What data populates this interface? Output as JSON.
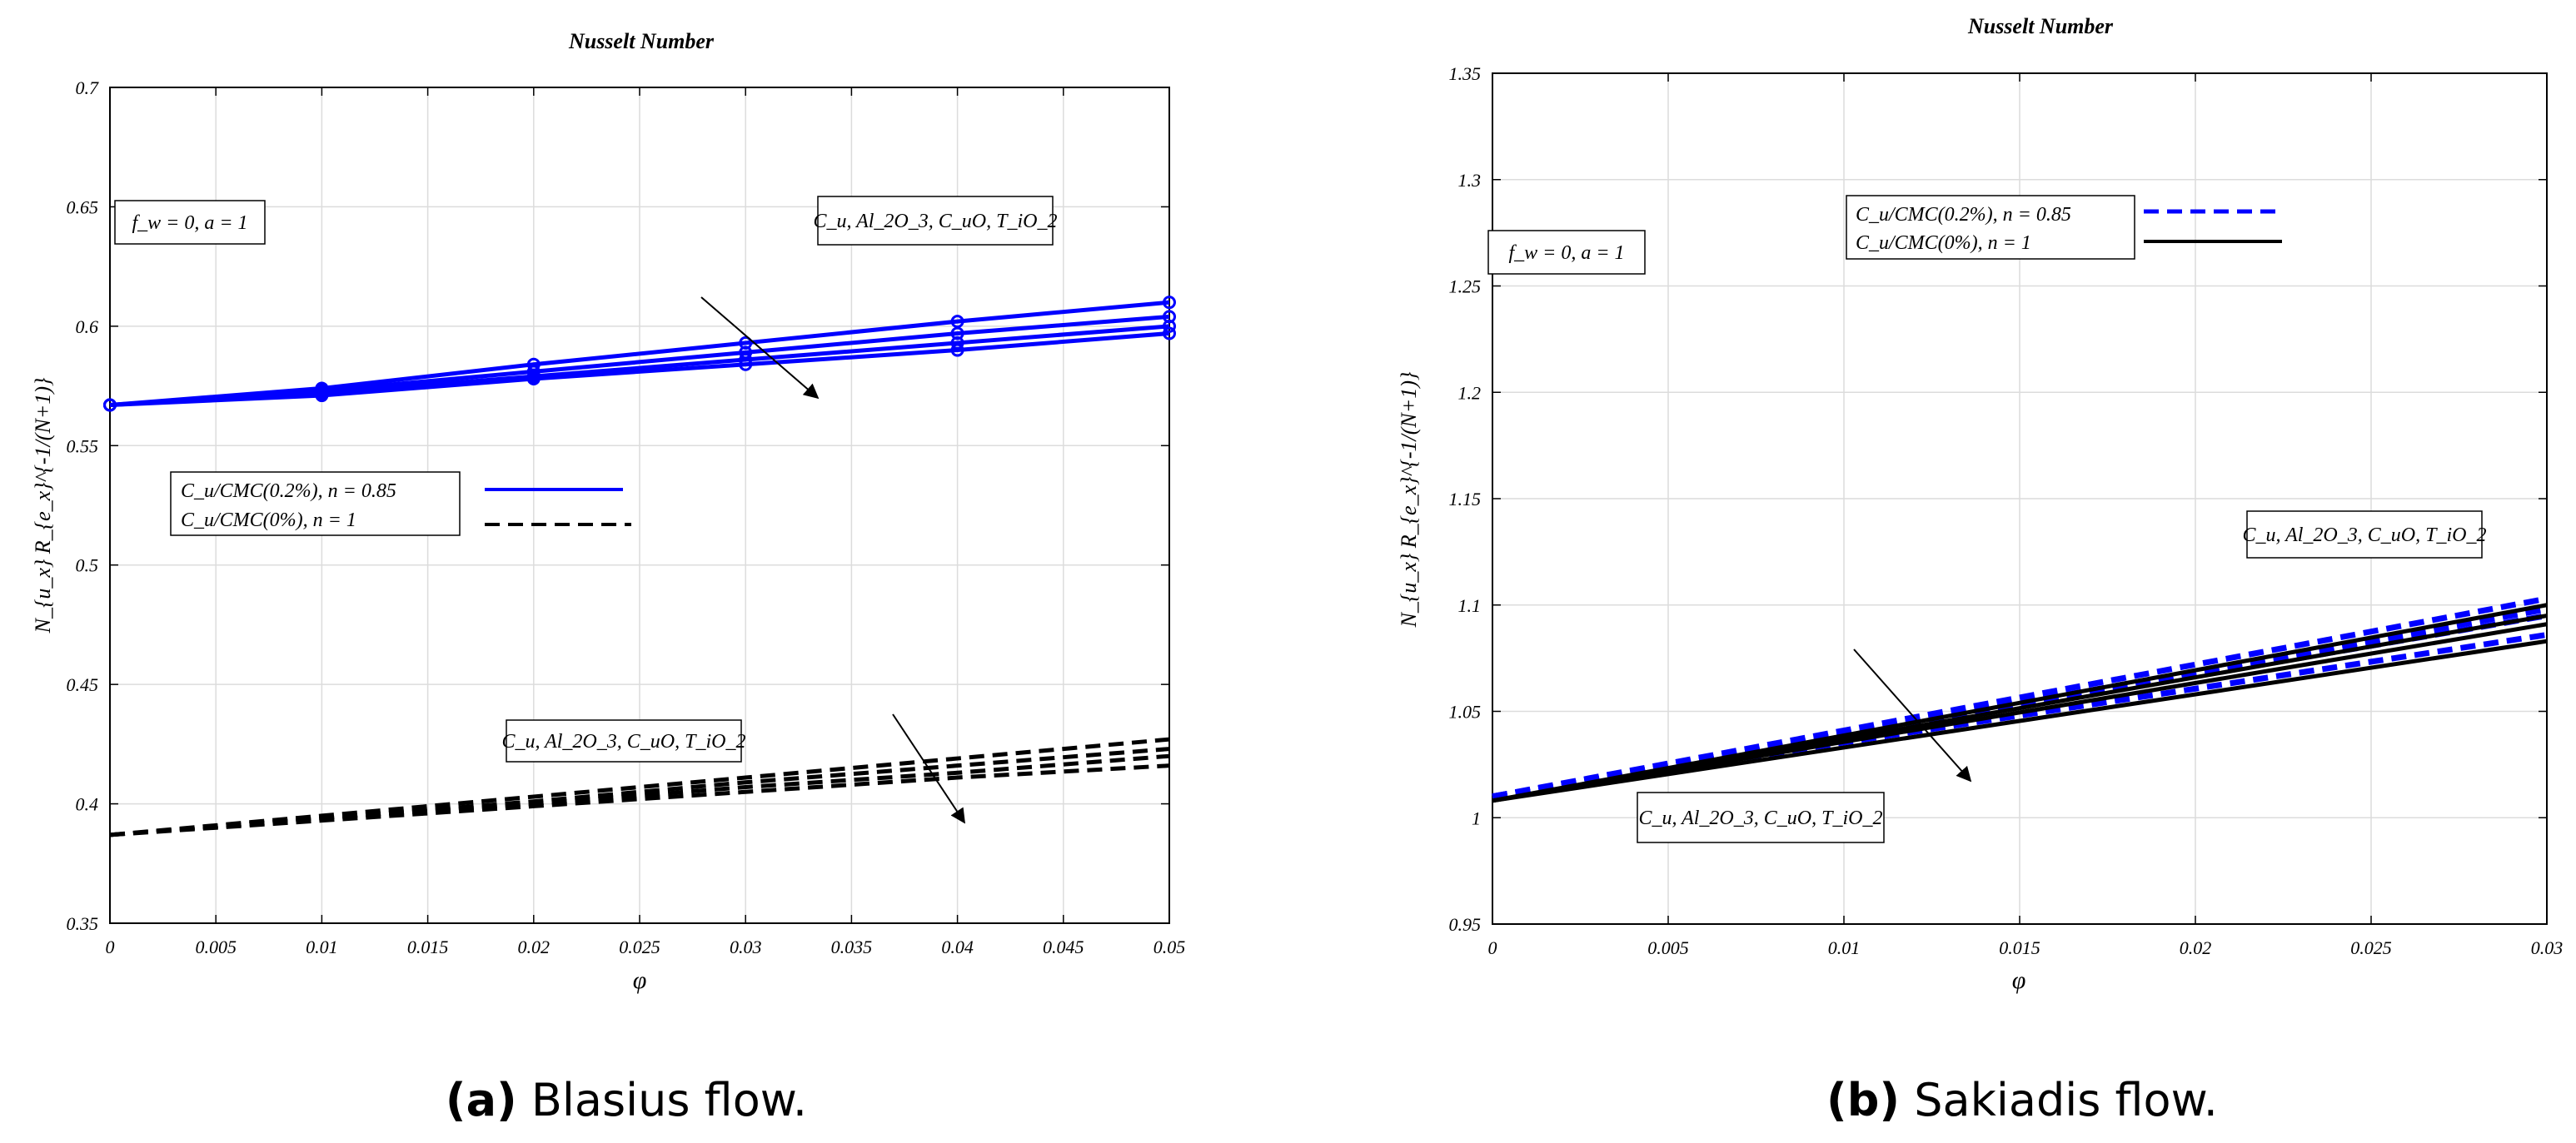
{
  "chart_data": [
    {
      "type": "line",
      "panel": "a",
      "title": "Nusselt Number",
      "xlabel": "φ",
      "ylabel": "N_{u_x} R_{e_x}^{-1/(N+1)}",
      "xlim": [
        0,
        0.05
      ],
      "ylim": [
        0.35,
        0.7
      ],
      "xticks": [
        0,
        0.005,
        0.01,
        0.015,
        0.02,
        0.025,
        0.03,
        0.035,
        0.04,
        0.045,
        0.05
      ],
      "xtick_labels": [
        "0",
        "0.005",
        "0.01",
        "0.015",
        "0.02",
        "0.025",
        "0.03",
        "0.035",
        "0.04",
        "0.045",
        "0.05"
      ],
      "yticks": [
        0.35,
        0.4,
        0.45,
        0.5,
        0.55,
        0.6,
        0.65,
        0.7
      ],
      "ytick_labels": [
        "0.35",
        "0.4",
        "0.45",
        "0.5",
        "0.55",
        "0.6",
        "0.65",
        "0.7"
      ],
      "grid": true,
      "color_blue": "#0000ff",
      "color_black": "#000000",
      "series": [
        {
          "name": "Cu/CMC(0.2%), n=0.85 - Cu",
          "group": "CMC 0.2%",
          "style": "solid-marker",
          "x": [
            0,
            0.01,
            0.02,
            0.03,
            0.04,
            0.05
          ],
          "values": [
            0.567,
            0.574,
            0.584,
            0.593,
            0.602,
            0.61
          ]
        },
        {
          "name": "Cu/CMC(0.2%), n=0.85 - Al2O3",
          "group": "CMC 0.2%",
          "style": "solid-marker",
          "x": [
            0,
            0.01,
            0.02,
            0.03,
            0.04,
            0.05
          ],
          "values": [
            0.567,
            0.573,
            0.581,
            0.589,
            0.597,
            0.604
          ]
        },
        {
          "name": "Cu/CMC(0.2%), n=0.85 - CuO",
          "group": "CMC 0.2%",
          "style": "solid-marker",
          "x": [
            0,
            0.01,
            0.02,
            0.03,
            0.04,
            0.05
          ],
          "values": [
            0.567,
            0.572,
            0.579,
            0.586,
            0.593,
            0.6
          ]
        },
        {
          "name": "Cu/CMC(0.2%), n=0.85 - TiO2",
          "group": "CMC 0.2%",
          "style": "solid-marker",
          "x": [
            0,
            0.01,
            0.02,
            0.03,
            0.04,
            0.05
          ],
          "values": [
            0.567,
            0.571,
            0.578,
            0.584,
            0.59,
            0.597
          ]
        },
        {
          "name": "Cu/CMC(0%), n=1 - Cu",
          "group": "CMC 0%",
          "style": "dashed",
          "x": [
            0,
            0.01,
            0.02,
            0.03,
            0.04,
            0.05
          ],
          "values": [
            0.387,
            0.395,
            0.403,
            0.411,
            0.419,
            0.427
          ]
        },
        {
          "name": "Cu/CMC(0%), n=1 - Al2O3",
          "group": "CMC 0%",
          "style": "dashed",
          "x": [
            0,
            0.01,
            0.02,
            0.03,
            0.04,
            0.05
          ],
          "values": [
            0.387,
            0.394,
            0.401,
            0.409,
            0.416,
            0.423
          ]
        },
        {
          "name": "Cu/CMC(0%), n=1 - CuO",
          "group": "CMC 0%",
          "style": "dashed",
          "x": [
            0,
            0.01,
            0.02,
            0.03,
            0.04,
            0.05
          ],
          "values": [
            0.387,
            0.394,
            0.4,
            0.407,
            0.413,
            0.42
          ]
        },
        {
          "name": "Cu/CMC(0%), n=1 - TiO2",
          "group": "CMC 0%",
          "style": "dashed",
          "x": [
            0,
            0.01,
            0.02,
            0.03,
            0.04,
            0.05
          ],
          "values": [
            0.387,
            0.393,
            0.399,
            0.405,
            0.411,
            0.416
          ]
        }
      ],
      "annotations": {
        "param_box": "f_w = 0, a = 1",
        "nano_label_blue": "C_u, Al_2O_3, C_uO, T_iO_2",
        "nano_label_black": "C_u, Al_2O_3, C_uO, T_iO_2"
      },
      "legend": {
        "placement": "center-left",
        "entries": [
          {
            "label": "C_u/CMC(0.2%), n = 0.85",
            "style": "solid",
            "color": "#0000ff"
          },
          {
            "label": "C_u/CMC(0%), n = 1",
            "style": "dashed",
            "color": "#000000"
          }
        ]
      },
      "caption": {
        "letter": "(a)",
        "text": "Blasius flow."
      }
    },
    {
      "type": "line",
      "panel": "b",
      "title": "Nusselt Number",
      "xlabel": "φ",
      "ylabel": "N_{u_x} R_{e_x}^{-1/(N+1)}",
      "xlim": [
        0,
        0.03
      ],
      "ylim": [
        0.95,
        1.35
      ],
      "xticks": [
        0,
        0.005,
        0.01,
        0.015,
        0.02,
        0.025,
        0.03
      ],
      "xtick_labels": [
        "0",
        "0.005",
        "0.01",
        "0.015",
        "0.02",
        "0.025",
        "0.03"
      ],
      "yticks": [
        0.95,
        1,
        1.05,
        1.1,
        1.15,
        1.2,
        1.25,
        1.3,
        1.35
      ],
      "ytick_labels": [
        "0.95",
        "1",
        "1.05",
        "1.1",
        "1.15",
        "1.2",
        "1.25",
        "1.3",
        "1.35"
      ],
      "grid": true,
      "color_blue": "#0000ff",
      "color_black": "#000000",
      "series": [
        {
          "name": "Cu/CMC(0.2%), n=0.85 - Cu",
          "group": "CMC 0.2%",
          "style": "dashed",
          "x": [
            0,
            0.03
          ],
          "values": [
            1.01,
            1.103
          ]
        },
        {
          "name": "Cu/CMC(0.2%), n=0.85 - Al2O3",
          "group": "CMC 0.2%",
          "style": "dashed",
          "x": [
            0,
            0.03
          ],
          "values": [
            1.01,
            1.098
          ]
        },
        {
          "name": "Cu/CMC(0.2%), n=0.85 - CuO",
          "group": "CMC 0.2%",
          "style": "dashed",
          "x": [
            0,
            0.03
          ],
          "values": [
            1.01,
            1.095
          ]
        },
        {
          "name": "Cu/CMC(0.2%), n=0.85 - TiO2",
          "group": "CMC 0.2%",
          "style": "dashed",
          "x": [
            0,
            0.03
          ],
          "values": [
            1.01,
            1.086
          ]
        },
        {
          "name": "Cu/CMC(0%), n=1 - Cu",
          "group": "CMC 0%",
          "style": "solid",
          "x": [
            0,
            0.03
          ],
          "values": [
            1.008,
            1.1
          ]
        },
        {
          "name": "Cu/CMC(0%), n=1 - Al2O3",
          "group": "CMC 0%",
          "style": "solid",
          "x": [
            0,
            0.03
          ],
          "values": [
            1.008,
            1.095
          ]
        },
        {
          "name": "Cu/CMC(0%), n=1 - CuO",
          "group": "CMC 0%",
          "style": "solid",
          "x": [
            0,
            0.03
          ],
          "values": [
            1.008,
            1.091
          ]
        },
        {
          "name": "Cu/CMC(0%), n=1 - TiO2",
          "group": "CMC 0%",
          "style": "solid",
          "x": [
            0,
            0.03
          ],
          "values": [
            1.008,
            1.083
          ]
        }
      ],
      "annotations": {
        "param_box": "f_w = 0, a = 1",
        "nano_label_upper": "C_u, Al_2O_3, C_uO, T_iO_2",
        "nano_label_lower": "C_u, Al_2O_3, C_uO, T_iO_2"
      },
      "legend": {
        "placement": "top-center",
        "entries": [
          {
            "label": "C_u/CMC(0.2%), n = 0.85",
            "style": "dashed",
            "color": "#0000ff"
          },
          {
            "label": "C_u/CMC(0%), n = 1",
            "style": "solid",
            "color": "#000000"
          }
        ]
      },
      "caption": {
        "letter": "(b)",
        "text": "Sakiadis flow."
      }
    }
  ]
}
